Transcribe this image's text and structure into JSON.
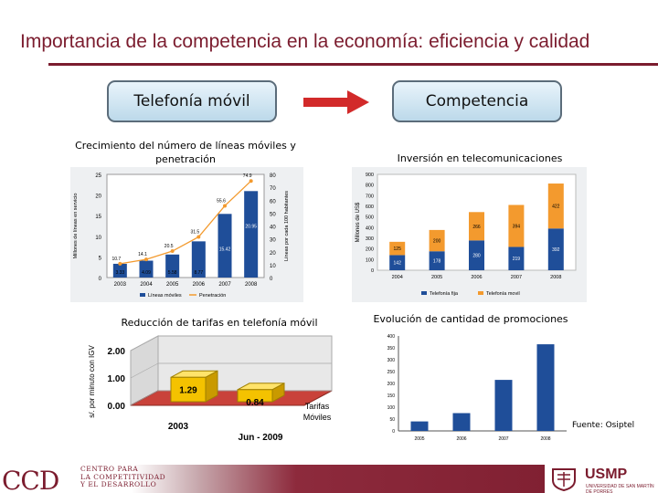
{
  "slide": {
    "title": "Importancia de la competencia en la economía: eficiencia y calidad",
    "box_left": "Telefonía móvil",
    "box_right": "Competencia",
    "source": "Fuente: Osiptel"
  },
  "colors": {
    "brand": "#7b1c2e",
    "bar_blue": "#1f4e99",
    "bar_orange": "#f39a2e",
    "bar_3d": "#f4c200",
    "floor_3d": "#c9423a"
  },
  "footer": {
    "ccd_logo": "CCD",
    "ccd_lines": [
      "CENTRO PARA",
      "LA COMPETITIVIDAD",
      "Y EL DESARROLLO"
    ],
    "usmp_name": "USMP",
    "usmp_sub": "UNIVERSIDAD DE SAN MARTÍN DE PORRES"
  },
  "chart_data": [
    {
      "type": "bar",
      "caption": "Crecimiento del número de líneas móviles y penetración",
      "categories": [
        "2003",
        "2004",
        "2005",
        "2006",
        "2007",
        "2008"
      ],
      "series": [
        {
          "name": "Líneas móviles",
          "values": [
            3.33,
            4.09,
            5.58,
            8.77,
            15.42,
            20.95
          ]
        },
        {
          "name": "Penetración",
          "values": [
            10.7,
            14.1,
            20.5,
            31.5,
            55.6,
            74.9
          ]
        }
      ],
      "ylabel": "Millones de líneas en servicio",
      "y2label": "Líneas por cada 100 habitantes",
      "ylim": [
        0,
        25
      ],
      "y2lim": [
        0,
        80
      ],
      "yticks": [
        "0",
        "5",
        "10",
        "15",
        "20",
        "25"
      ],
      "y2ticks": [
        "0",
        "10",
        "20",
        "30",
        "40",
        "50",
        "60",
        "70",
        "80"
      ],
      "point_labels": [
        "10.7",
        "14.1",
        "20.5",
        "31.5",
        "55.6",
        "74.9"
      ],
      "bar_labels": [
        "3.33",
        "4.09",
        "5.58",
        "8.77",
        "15.42",
        "20.95"
      ]
    },
    {
      "type": "bar",
      "caption": "Inversión en telecomunicaciones",
      "categories": [
        "2004",
        "2005",
        "2006",
        "2007",
        "2008"
      ],
      "series": [
        {
          "name": "Telefonía fija",
          "values": [
            142,
            178,
            280,
            219,
            392
          ]
        },
        {
          "name": "Telefonía movil",
          "values": [
            125,
            200,
            266,
            394,
            422
          ]
        }
      ],
      "ylabel": "Millones de US$",
      "ylim": [
        0,
        900
      ],
      "yticks": [
        "0",
        "100",
        "200",
        "300",
        "400",
        "500",
        "600",
        "700",
        "800",
        "900"
      ],
      "bar_labels_fija": [
        "142",
        "178",
        "280",
        "219",
        "392"
      ],
      "bar_labels_movil": [
        "125",
        "200",
        "266",
        "394",
        "422"
      ]
    },
    {
      "type": "bar",
      "caption": "Reducción de tarifas en telefonía móvil",
      "categories": [
        "2003",
        "Jun - 2009"
      ],
      "series": [
        {
          "name": "Tarifas Móviles",
          "values": [
            1.29,
            0.84
          ]
        }
      ],
      "ylabel": "s/. por minuto con IGV",
      "ylim": [
        0,
        2
      ],
      "yticks": [
        "0.00",
        "1.00",
        "2.00"
      ],
      "bar_labels": [
        "1.29",
        "0.84"
      ]
    },
    {
      "type": "bar",
      "caption": "Evolución de cantidad de promociones",
      "categories": [
        "2005",
        "2006",
        "2007",
        "2008"
      ],
      "series": [
        {
          "name": "Promociones",
          "values": [
            40,
            75,
            215,
            365
          ]
        }
      ],
      "ylim": [
        0,
        400
      ],
      "yticks": [
        "0",
        "50",
        "100",
        "150",
        "200",
        "250",
        "300",
        "350",
        "400"
      ]
    }
  ]
}
